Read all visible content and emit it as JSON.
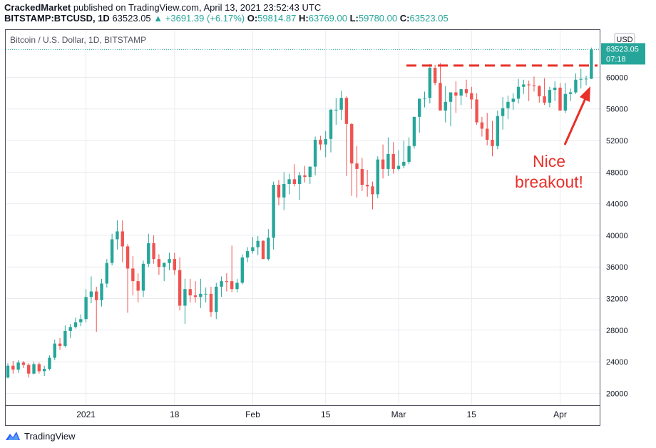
{
  "header": {
    "publisher": "CrackedMarket",
    "published_text": "published on TradingView.com, April 13, 2021 23:52:43 UTC",
    "symbol": "BITSTAMP:BTCUSD, 1D",
    "last": "63523.05",
    "change": "▲ +3691.39 (+6.17%)",
    "o_label": "O:",
    "o_value": "59814.87",
    "h_label": "H:",
    "h_value": "63769.00",
    "l_label": "L:",
    "l_value": "59780.00",
    "c_label": "C:",
    "c_value": "63523.05"
  },
  "footer": {
    "brand": "TradingView",
    "logo_icon": "tradingview-logo-icon"
  },
  "colors": {
    "up": "#26a69a",
    "down": "#ef5350",
    "annotation": "#e8302a",
    "grid": "#e9ebef"
  },
  "chart_data": {
    "type": "candlestick",
    "title": "Bitcoin / U.S. Dollar, 1D, BITSTAMP",
    "currency": "USD",
    "price_label": "63523.05",
    "countdown": "07:18",
    "ylim": [
      18500,
      66000
    ],
    "yticks": [
      "20000",
      "24000",
      "28000",
      "32000",
      "36000",
      "40000",
      "44000",
      "48000",
      "52000",
      "56000",
      "60000"
    ],
    "xticks": [
      "2021",
      "18",
      "Feb",
      "15",
      "Mar",
      "15",
      "Apr"
    ],
    "xtick_index": [
      15,
      32,
      47,
      61,
      75,
      89,
      106
    ],
    "grid": true,
    "resistance_level": 61500,
    "annotation": [
      "Nice",
      "breakout!"
    ],
    "candles": [
      [
        22000,
        23800,
        21900,
        23500
      ],
      [
        23500,
        24100,
        22500,
        23000
      ],
      [
        23000,
        24200,
        22600,
        23900
      ],
      [
        23900,
        24100,
        23200,
        23600
      ],
      [
        23600,
        23800,
        22000,
        22500
      ],
      [
        22500,
        24000,
        22400,
        23700
      ],
      [
        23700,
        23900,
        22500,
        22800
      ],
      [
        22800,
        23500,
        22200,
        23100
      ],
      [
        23100,
        24800,
        22900,
        24500
      ],
      [
        24500,
        26800,
        24200,
        26300
      ],
      [
        26300,
        27000,
        25500,
        26000
      ],
      [
        26000,
        28600,
        25800,
        27900
      ],
      [
        27900,
        28800,
        27000,
        28400
      ],
      [
        28400,
        29600,
        28200,
        29000
      ],
      [
        29000,
        30000,
        28500,
        29400
      ],
      [
        29400,
        33200,
        29000,
        32200
      ],
      [
        32200,
        34800,
        31400,
        32900
      ],
      [
        32900,
        33500,
        27800,
        31800
      ],
      [
        31800,
        34500,
        31000,
        33900
      ],
      [
        33900,
        37000,
        33400,
        36500
      ],
      [
        36500,
        40200,
        36200,
        39500
      ],
      [
        39500,
        41900,
        38200,
        40500
      ],
      [
        40500,
        41900,
        36600,
        38600
      ],
      [
        38600,
        38900,
        30200,
        35800
      ],
      [
        35800,
        37400,
        32400,
        34200
      ],
      [
        34200,
        35200,
        31500,
        33000
      ],
      [
        33000,
        36800,
        32200,
        36400
      ],
      [
        36400,
        40200,
        36000,
        39000
      ],
      [
        39000,
        40000,
        36400,
        37000
      ],
      [
        37000,
        37600,
        35000,
        36000
      ],
      [
        36000,
        36600,
        34200,
        36500
      ],
      [
        36500,
        37800,
        35600,
        37000
      ],
      [
        37000,
        37800,
        35000,
        35600
      ],
      [
        35600,
        37200,
        30500,
        31100
      ],
      [
        31100,
        34500,
        28800,
        33200
      ],
      [
        33200,
        34500,
        31500,
        32400
      ],
      [
        32400,
        34200,
        31500,
        32200
      ],
      [
        32200,
        34500,
        30800,
        32600
      ],
      [
        32600,
        33400,
        31500,
        32600
      ],
      [
        32600,
        33500,
        29700,
        30300
      ],
      [
        30300,
        34000,
        29400,
        33500
      ],
      [
        33500,
        34800,
        32200,
        34200
      ],
      [
        34200,
        35200,
        32900,
        34100
      ],
      [
        34200,
        38700,
        32800,
        33200
      ],
      [
        33200,
        34500,
        32800,
        34000
      ],
      [
        34000,
        37600,
        33800,
        37200
      ],
      [
        37200,
        38500,
        36600,
        38000
      ],
      [
        38000,
        39800,
        37700,
        38500
      ],
      [
        38500,
        39900,
        37500,
        39300
      ],
      [
        39300,
        39400,
        37000,
        37000
      ],
      [
        37000,
        40800,
        36800,
        39700
      ],
      [
        39700,
        46800,
        38200,
        46400
      ],
      [
        46400,
        47000,
        43800,
        44800
      ],
      [
        44800,
        48000,
        43200,
        46500
      ],
      [
        46500,
        47800,
        45200,
        47100
      ],
      [
        47100,
        49000,
        46200,
        46500
      ],
      [
        46500,
        48000,
        44500,
        47600
      ],
      [
        47600,
        48800,
        46700,
        47400
      ],
      [
        47400,
        48700,
        46500,
        48700
      ],
      [
        48700,
        52500,
        47600,
        52100
      ],
      [
        52100,
        52600,
        50800,
        51500
      ],
      [
        51500,
        53200,
        49900,
        52200
      ],
      [
        52200,
        56000,
        50500,
        55900
      ],
      [
        55900,
        57400,
        54000,
        55900
      ],
      [
        55900,
        58300,
        54600,
        57400
      ],
      [
        57400,
        57600,
        47500,
        54100
      ],
      [
        54100,
        54200,
        45000,
        49100
      ],
      [
        49100,
        51300,
        44800,
        48400
      ],
      [
        48400,
        49800,
        45600,
        46400
      ],
      [
        46400,
        48300,
        44900,
        46200
      ],
      [
        46200,
        46800,
        43300,
        45200
      ],
      [
        45200,
        50000,
        44700,
        49600
      ],
      [
        49600,
        51500,
        47200,
        48400
      ],
      [
        48400,
        52400,
        47500,
        50300
      ],
      [
        50300,
        51800,
        47800,
        48400
      ],
      [
        48400,
        50800,
        48200,
        48800
      ],
      [
        48800,
        52000,
        48500,
        49300
      ],
      [
        49300,
        52400,
        49000,
        51300
      ],
      [
        51300,
        55000,
        51000,
        55000
      ],
      [
        55000,
        57300,
        53000,
        57300
      ],
      [
        57300,
        58200,
        56200,
        57400
      ],
      [
        57400,
        61700,
        56700,
        61200
      ],
      [
        61200,
        61600,
        59000,
        59300
      ],
      [
        59300,
        61800,
        56200,
        55800
      ],
      [
        55800,
        58900,
        54300,
        56900
      ],
      [
        56900,
        58100,
        53800,
        58100
      ],
      [
        58100,
        59500,
        55500,
        57700
      ],
      [
        57700,
        58500,
        56500,
        58500
      ],
      [
        58500,
        59700,
        57500,
        58000
      ],
      [
        58000,
        58800,
        56000,
        57200
      ],
      [
        57200,
        58000,
        54000,
        54300
      ],
      [
        54300,
        55000,
        52500,
        53500
      ],
      [
        53500,
        55500,
        51400,
        52100
      ],
      [
        52100,
        54500,
        50000,
        51300
      ],
      [
        51300,
        55800,
        50900,
        55100
      ],
      [
        55100,
        57500,
        53400,
        56100
      ],
      [
        56100,
        57700,
        54700,
        56900
      ],
      [
        56900,
        58000,
        55900,
        57300
      ],
      [
        57300,
        59800,
        56700,
        58800
      ],
      [
        58800,
        59700,
        57900,
        59100
      ],
      [
        59100,
        59600,
        57000,
        59000
      ],
      [
        59000,
        60100,
        58200,
        58900
      ],
      [
        58900,
        59000,
        56800,
        57600
      ],
      [
        57600,
        59900,
        56500,
        56800
      ],
      [
        56800,
        58800,
        56200,
        58400
      ],
      [
        58400,
        59500,
        57000,
        58700
      ],
      [
        58700,
        59300,
        55800,
        55800
      ],
      [
        55800,
        59300,
        55500,
        57900
      ],
      [
        57900,
        58600,
        57000,
        58100
      ],
      [
        58100,
        60500,
        57900,
        59700
      ],
      [
        59700,
        61100,
        58600,
        59800
      ],
      [
        59800,
        60200,
        59000,
        59830
      ],
      [
        59814.87,
        63769,
        59780,
        63523.05
      ]
    ]
  }
}
